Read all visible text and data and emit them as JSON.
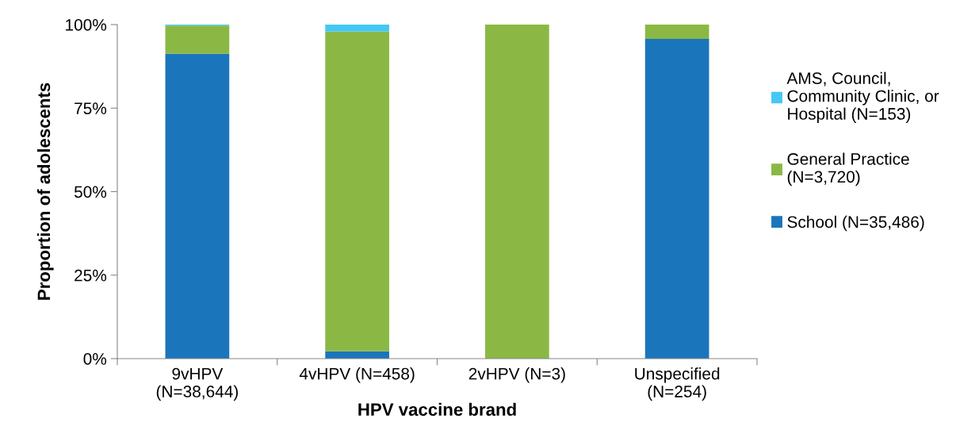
{
  "chart_data": {
    "type": "bar",
    "stacked": true,
    "xlabel": "HPV vaccine brand",
    "ylabel": "Proportion of adolescents",
    "categories": [
      "9vHPV\n(N=38,644)",
      "4vHPV (N=458)",
      "2vHPV (N=3)",
      "Unspecified\n(N=254)"
    ],
    "series": [
      {
        "name": "School (N=35,486)",
        "color": "#1b75bb",
        "values": [
          91.3,
          2.2,
          0,
          95.7
        ]
      },
      {
        "name": "General Practice\n(N=3,720)",
        "color": "#8bb844",
        "values": [
          8.4,
          95.7,
          100,
          4.3
        ]
      },
      {
        "name": "AMS, Council,\nCommunity Clinic, or\nHospital (N=153)",
        "color": "#45c8f4",
        "values": [
          0.3,
          2.1,
          0,
          0
        ]
      }
    ],
    "ylim": [
      0,
      100
    ],
    "yticks": [
      {
        "value": 0,
        "label": "0%"
      },
      {
        "value": 25,
        "label": "25%"
      },
      {
        "value": 50,
        "label": "50%"
      },
      {
        "value": 75,
        "label": "75%"
      },
      {
        "value": 100,
        "label": "100%"
      }
    ],
    "grid": false,
    "legend": "right"
  }
}
